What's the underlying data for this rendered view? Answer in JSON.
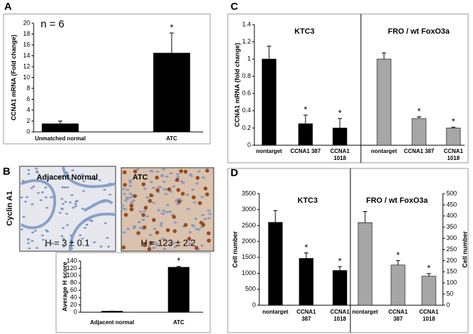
{
  "panels": [
    "A",
    "B",
    "C",
    "D"
  ],
  "row_label": "Cyclin A1",
  "images": [
    {
      "label": "Adjacent Normal",
      "caption": "H = 3 ± 0.1"
    },
    {
      "label": "ATC",
      "caption": "H = 123 ± 2.2"
    }
  ],
  "chart_data": [
    {
      "type": "bar",
      "ylabel": "CCNA1 mRNA (Fold change)",
      "annotation": "n = 6",
      "categories": [
        "Unmatched normal",
        "ATC"
      ],
      "values": [
        1.5,
        14.5
      ],
      "errors": [
        0.5,
        3.7
      ],
      "marks": [
        null,
        "*"
      ],
      "color": "#000000",
      "ylim": [
        0,
        20
      ],
      "yticks": [
        0,
        2,
        4,
        6,
        8,
        10,
        12,
        14,
        16,
        18,
        20
      ]
    },
    {
      "type": "bar",
      "ylabel": "Average H score",
      "categories": [
        "Adjacent normal",
        "ATC"
      ],
      "values": [
        3,
        123
      ],
      "errors": [
        0.1,
        2.2
      ],
      "marks": [
        null,
        "*"
      ],
      "color": "#000000",
      "ylim": [
        0,
        140
      ],
      "yticks": [
        0,
        20,
        40,
        60,
        80,
        100,
        120,
        140
      ]
    },
    {
      "type": "bar",
      "ylabel": "CCNA1 mRNA (fold change)",
      "categories": [
        "nontarget",
        "CCNA1 387",
        "CCNA1 1018"
      ],
      "series": [
        {
          "name": "KTC3",
          "color": "#000000",
          "values": [
            1.0,
            0.25,
            0.2
          ],
          "errors": [
            0.15,
            0.1,
            0.11
          ],
          "marks": [
            null,
            "*",
            "*"
          ]
        },
        {
          "name": "FRO / wt FoxO3a",
          "color": "#a6a6a6",
          "values": [
            1.0,
            0.31,
            0.2
          ],
          "errors": [
            0.07,
            0.02,
            0.01
          ],
          "marks": [
            null,
            "*",
            "*"
          ]
        }
      ],
      "ylim": [
        0,
        1.4
      ],
      "yticks": [
        0,
        0.2,
        0.4,
        0.6,
        0.8,
        1,
        1.2,
        1.4
      ]
    },
    {
      "type": "bar",
      "ylabel": "Cell number",
      "y2label": "Cell number",
      "categories": [
        "nontarget",
        "CCNA1 387",
        "CCNA1 1018"
      ],
      "series": [
        {
          "name": "KTC3",
          "color": "#000000",
          "values": [
            2600,
            1470,
            1090
          ],
          "errors": [
            370,
            170,
            120
          ],
          "marks": [
            null,
            "*",
            "*"
          ]
        },
        {
          "name": "FRO / wt FoxO3a",
          "color": "#a6a6a6",
          "axis": "y2",
          "values": [
            370,
            180,
            130
          ],
          "errors": [
            50,
            20,
            12
          ],
          "marks": [
            null,
            "*",
            "*"
          ]
        }
      ],
      "ylim": [
        0,
        3500
      ],
      "yticks": [
        0,
        500,
        1000,
        1500,
        2000,
        2500,
        3000,
        3500
      ],
      "y2lim": [
        0,
        500
      ],
      "y2ticks": [
        0,
        50,
        100,
        150,
        200,
        250,
        300,
        350,
        400,
        450,
        500
      ]
    }
  ]
}
